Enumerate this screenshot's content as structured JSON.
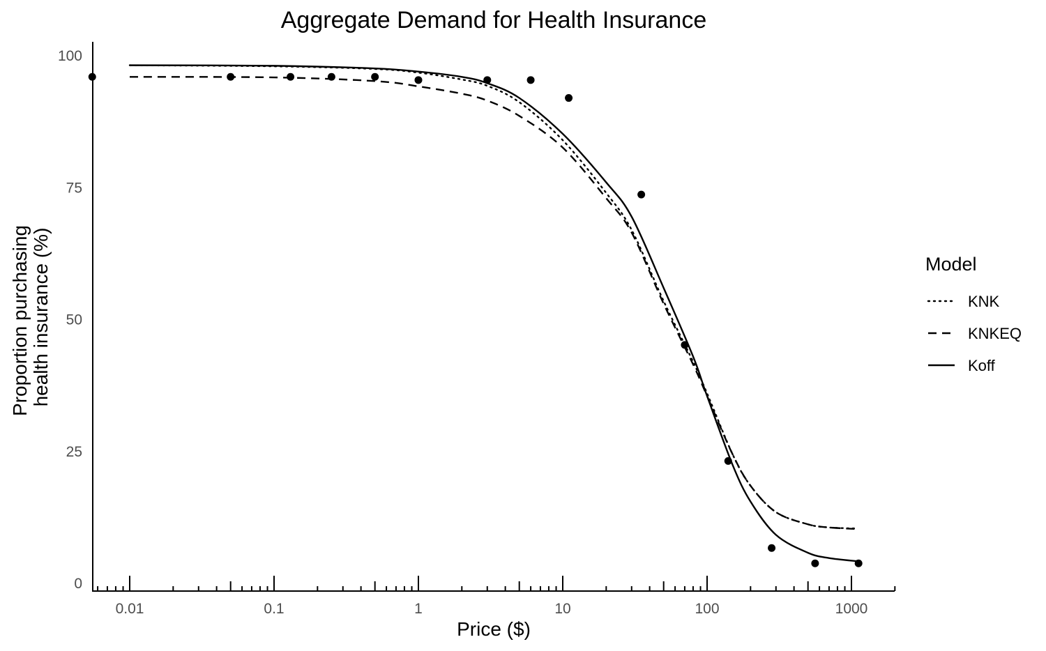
{
  "chart_data": {
    "type": "line",
    "title": "Aggregate Demand for Health Insurance",
    "xlabel": "Price ($)",
    "ylabel_lines": [
      "Proportion purchasing",
      "health insurance (%)"
    ],
    "x_scale": "log",
    "xlim": [
      0.0055,
      2000
    ],
    "ylim": [
      0,
      100
    ],
    "x_ticks": [
      0.01,
      0.1,
      1,
      10,
      100,
      1000
    ],
    "x_tick_labels": [
      "0.01",
      "0.1",
      "1",
      "10",
      "100",
      "1000"
    ],
    "y_ticks": [
      0,
      25,
      50,
      75,
      100
    ],
    "y_tick_labels": [
      "0",
      "25",
      "50",
      "75",
      "100"
    ],
    "grid": false,
    "legend": {
      "title": "Model",
      "position": "right",
      "entries": [
        {
          "name": "KNK",
          "dash": "dotted"
        },
        {
          "name": "KNKEQ",
          "dash": "dashed"
        },
        {
          "name": "Koff",
          "dash": "solid"
        }
      ]
    },
    "points": {
      "x": [
        0.0055,
        0.05,
        0.13,
        0.25,
        0.5,
        1,
        3,
        6,
        11,
        35,
        70,
        140,
        280,
        560,
        1120
      ],
      "y": [
        96,
        96,
        96,
        96,
        96,
        95.4,
        95.4,
        95.4,
        92,
        73.7,
        45.2,
        23.2,
        6.7,
        3.8,
        3.8
      ]
    },
    "series": [
      {
        "name": "KNK",
        "dash": "dotted",
        "x": [
          0.01,
          0.1,
          0.5,
          1,
          2,
          3,
          5,
          10,
          20,
          30,
          50,
          80,
          100,
          150,
          200,
          300,
          500,
          700,
          1100
        ],
        "y": [
          98.2,
          98.0,
          97.5,
          96.8,
          95.5,
          94.3,
          91.2,
          84,
          74,
          67,
          53.5,
          42,
          36,
          24.5,
          18.5,
          13.5,
          11.2,
          10.6,
          10.4
        ]
      },
      {
        "name": "KNKEQ",
        "dash": "dashed",
        "x": [
          0.01,
          0.1,
          0.5,
          1,
          2,
          3,
          5,
          10,
          20,
          30,
          50,
          80,
          100,
          150,
          200,
          300,
          500,
          700,
          1100
        ],
        "y": [
          96.0,
          95.9,
          95.2,
          94.2,
          92.8,
          91.5,
          88.6,
          82.6,
          73,
          66.5,
          53,
          41.5,
          35.5,
          24.5,
          18.5,
          13.5,
          11.2,
          10.6,
          10.3
        ]
      },
      {
        "name": "Koff",
        "dash": "solid",
        "x": [
          0.01,
          0.1,
          0.5,
          1,
          2,
          3,
          5,
          10,
          20,
          30,
          50,
          80,
          100,
          150,
          200,
          300,
          500,
          700,
          1100
        ],
        "y": [
          98.2,
          98.1,
          97.6,
          97.0,
          96.0,
          94.8,
          92.0,
          85.2,
          76,
          69.5,
          56,
          43,
          35.5,
          22.5,
          15.5,
          9.2,
          5.8,
          4.8,
          4.2
        ]
      }
    ]
  }
}
